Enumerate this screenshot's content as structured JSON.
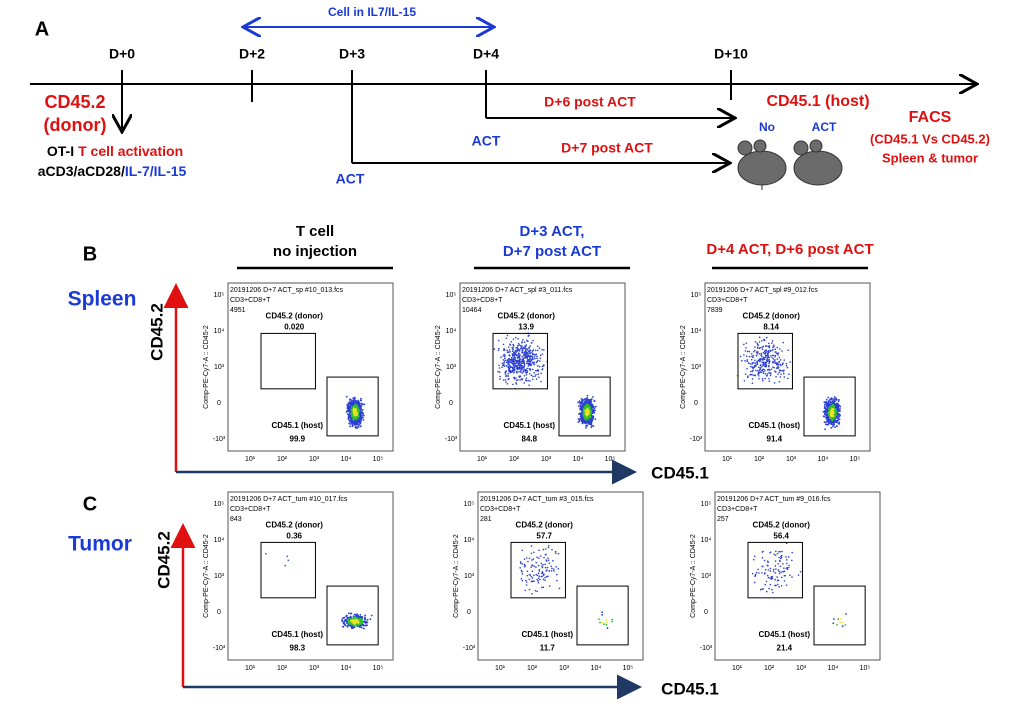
{
  "panel_a": {
    "label": "A",
    "days": [
      "D+0",
      "D+2",
      "D+3",
      "D+4",
      "D+10"
    ],
    "cytokine_window": "Cell in IL7/IL-15",
    "donor": "CD45.2",
    "donor_sub": "(donor)",
    "otI": "OT-I",
    "activation": "T cell activation",
    "antibodies": "aCD3/aCD28/",
    "cytokines": "IL-7/IL-15",
    "act_d3": "ACT",
    "act_d4": "ACT",
    "post_d6": "D+6 post ACT",
    "post_d7": "D+7 post ACT",
    "host": "CD45.1 (host)",
    "mouse_no": "No",
    "mouse_act": "ACT",
    "facs": "FACS",
    "facs_sub": "(CD45.1 Vs CD45.2)",
    "facs_tissue": "Spleen & tumor"
  },
  "panel_b": {
    "label": "B",
    "columns": [
      [
        "T cell",
        "no injection"
      ],
      [
        "D+3 ACT,",
        "D+7 post ACT"
      ],
      [
        "D+4 ACT, D+6 post ACT"
      ]
    ],
    "row_label": "Spleen",
    "y_axis": "CD45.2",
    "x_axis": "CD45.1"
  },
  "panel_c": {
    "label": "C",
    "row_label": "Tumor",
    "y_axis": "CD45.2",
    "x_axis": "CD45.1"
  },
  "plot_axes": {
    "y_label": "Comp-PE-Cy7-A :: CD45-2",
    "yticks": [
      "10⁵",
      "10⁴",
      "10³",
      "0",
      "-10³"
    ],
    "xticks": [
      "10¹",
      "10²",
      "10³",
      "10⁴",
      "10⁵"
    ],
    "population": "CD3+CD8+T",
    "donor_gate": "CD45.2 (donor)",
    "host_gate": "CD45.1 (host)"
  },
  "plots": [
    [
      {
        "file": "20191206 D+7 ACT_sp #10_013.fcs",
        "count": "4951",
        "donor_pct": "0.020",
        "host_pct": "99.9"
      },
      {
        "file": "20191206 D+7 ACT_spl #3_011.fcs",
        "count": "10464",
        "donor_pct": "13.9",
        "host_pct": "84.8"
      },
      {
        "file": "20191206 D+7 ACT_spl #9_012.fcs",
        "count": "7839",
        "donor_pct": "8.14",
        "host_pct": "91.4"
      }
    ],
    [
      {
        "file": "20191206 D+7 ACT_tum #10_017.fcs",
        "count": "843",
        "donor_pct": "0.36",
        "host_pct": "98.3"
      },
      {
        "file": "20191206 D+7 ACT_tum #3_015.fcs",
        "count": "281",
        "donor_pct": "57.7",
        "host_pct": "11.7"
      },
      {
        "file": "20191206 D+7 ACT_tum #9_016.fcs",
        "count": "257",
        "donor_pct": "56.4",
        "host_pct": "21.4"
      }
    ]
  ]
}
